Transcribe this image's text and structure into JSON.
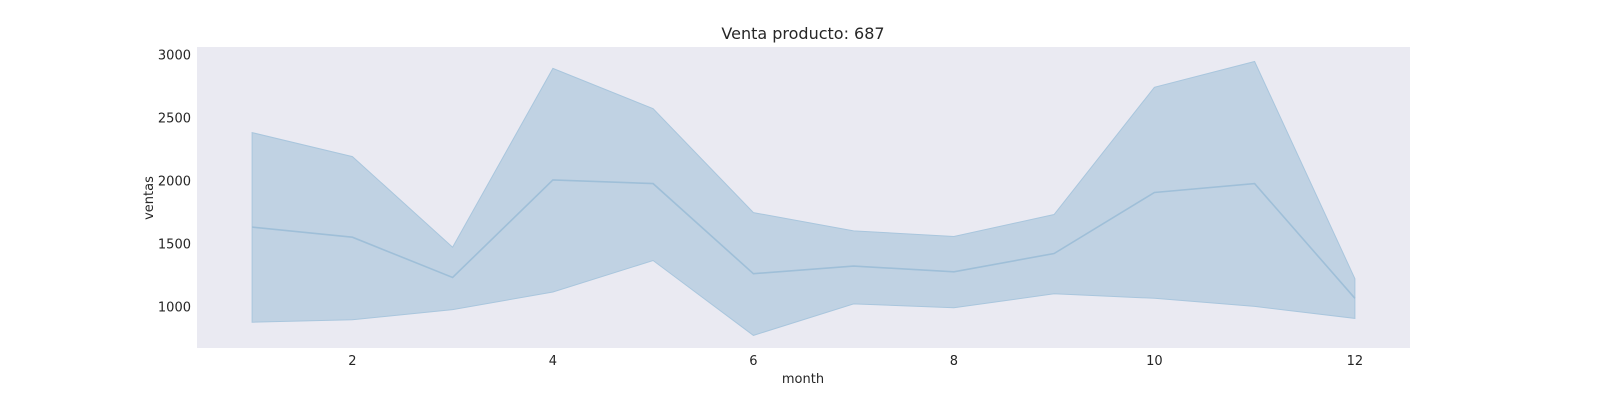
{
  "chart_data": {
    "type": "area",
    "title": "Venta producto: 687",
    "xlabel": "month",
    "ylabel": "ventas",
    "xlim": [
      0.45,
      12.55
    ],
    "ylim": [
      670,
      3060
    ],
    "x_ticks": [
      2,
      4,
      6,
      8,
      10,
      12
    ],
    "y_ticks": [
      1000,
      1500,
      2000,
      2500,
      3000
    ],
    "grid": false,
    "colors": {
      "background": "#eaeaf2",
      "band_fill": "#c0d2e3",
      "line": "#9fbfd8",
      "band_edge": "#a9c6dd"
    },
    "x": [
      1,
      2,
      3,
      4,
      5,
      6,
      7,
      8,
      9,
      10,
      11,
      12
    ],
    "series": [
      {
        "mean": [
          1630,
          1550,
          1230,
          2005,
          1975,
          1260,
          1320,
          1275,
          1420,
          1905,
          1975,
          1065
        ],
        "upper": [
          2380,
          2190,
          1470,
          2890,
          2570,
          1745,
          1600,
          1555,
          1730,
          2740,
          2945,
          1220
        ],
        "lower": [
          875,
          895,
          975,
          1115,
          1365,
          770,
          1020,
          990,
          1100,
          1065,
          1000,
          905
        ]
      }
    ]
  }
}
